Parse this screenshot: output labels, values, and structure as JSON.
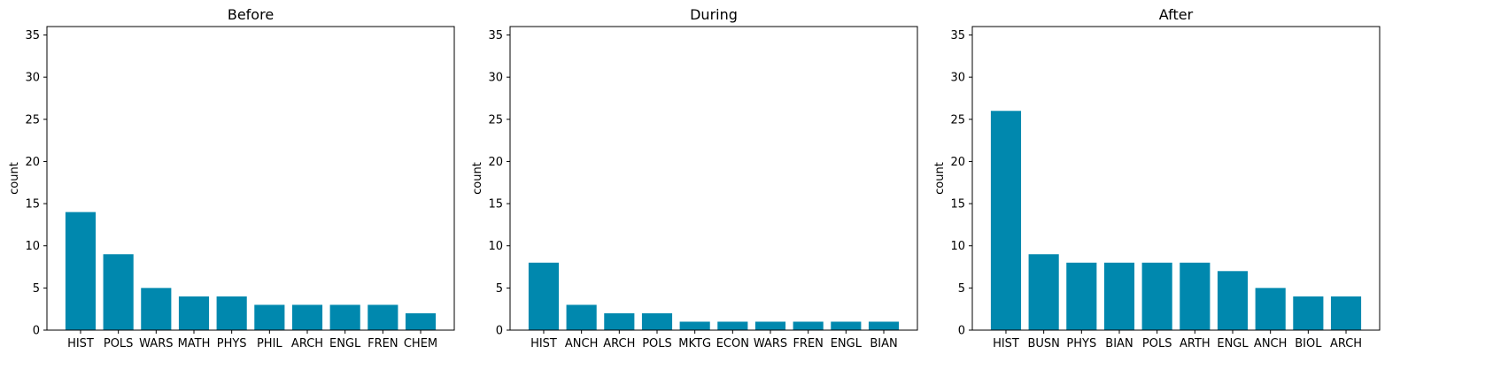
{
  "chart_data": [
    {
      "type": "bar",
      "title": "Before",
      "xlabel": "",
      "ylabel": "count",
      "ylim": [
        0,
        36
      ],
      "yticks": [
        0,
        5,
        10,
        15,
        20,
        25,
        30,
        35
      ],
      "categories": [
        "HIST",
        "POLS",
        "WARS",
        "MATH",
        "PHYS",
        "PHIL",
        "ARCH",
        "ENGL",
        "FREN",
        "CHEM"
      ],
      "values": [
        14,
        9,
        5,
        4,
        4,
        3,
        3,
        3,
        3,
        2
      ],
      "color": "#0088ae",
      "grid": false
    },
    {
      "type": "bar",
      "title": "During",
      "xlabel": "",
      "ylabel": "count",
      "ylim": [
        0,
        36
      ],
      "yticks": [
        0,
        5,
        10,
        15,
        20,
        25,
        30,
        35
      ],
      "categories": [
        "HIST",
        "ANCH",
        "ARCH",
        "POLS",
        "MKTG",
        "ECON",
        "WARS",
        "FREN",
        "ENGL",
        "BIAN"
      ],
      "values": [
        8,
        3,
        2,
        2,
        1,
        1,
        1,
        1,
        1,
        1
      ],
      "color": "#0088ae",
      "grid": false
    },
    {
      "type": "bar",
      "title": "After",
      "xlabel": "",
      "ylabel": "count",
      "ylim": [
        0,
        36
      ],
      "yticks": [
        0,
        5,
        10,
        15,
        20,
        25,
        30,
        35
      ],
      "categories": [
        "HIST",
        "BUSN",
        "PHYS",
        "BIAN",
        "POLS",
        "ARTH",
        "ENGL",
        "ANCH",
        "BIOL",
        "ARCH"
      ],
      "values": [
        26,
        9,
        8,
        8,
        8,
        8,
        7,
        5,
        4,
        4
      ],
      "color": "#0088ae",
      "grid": false
    }
  ]
}
